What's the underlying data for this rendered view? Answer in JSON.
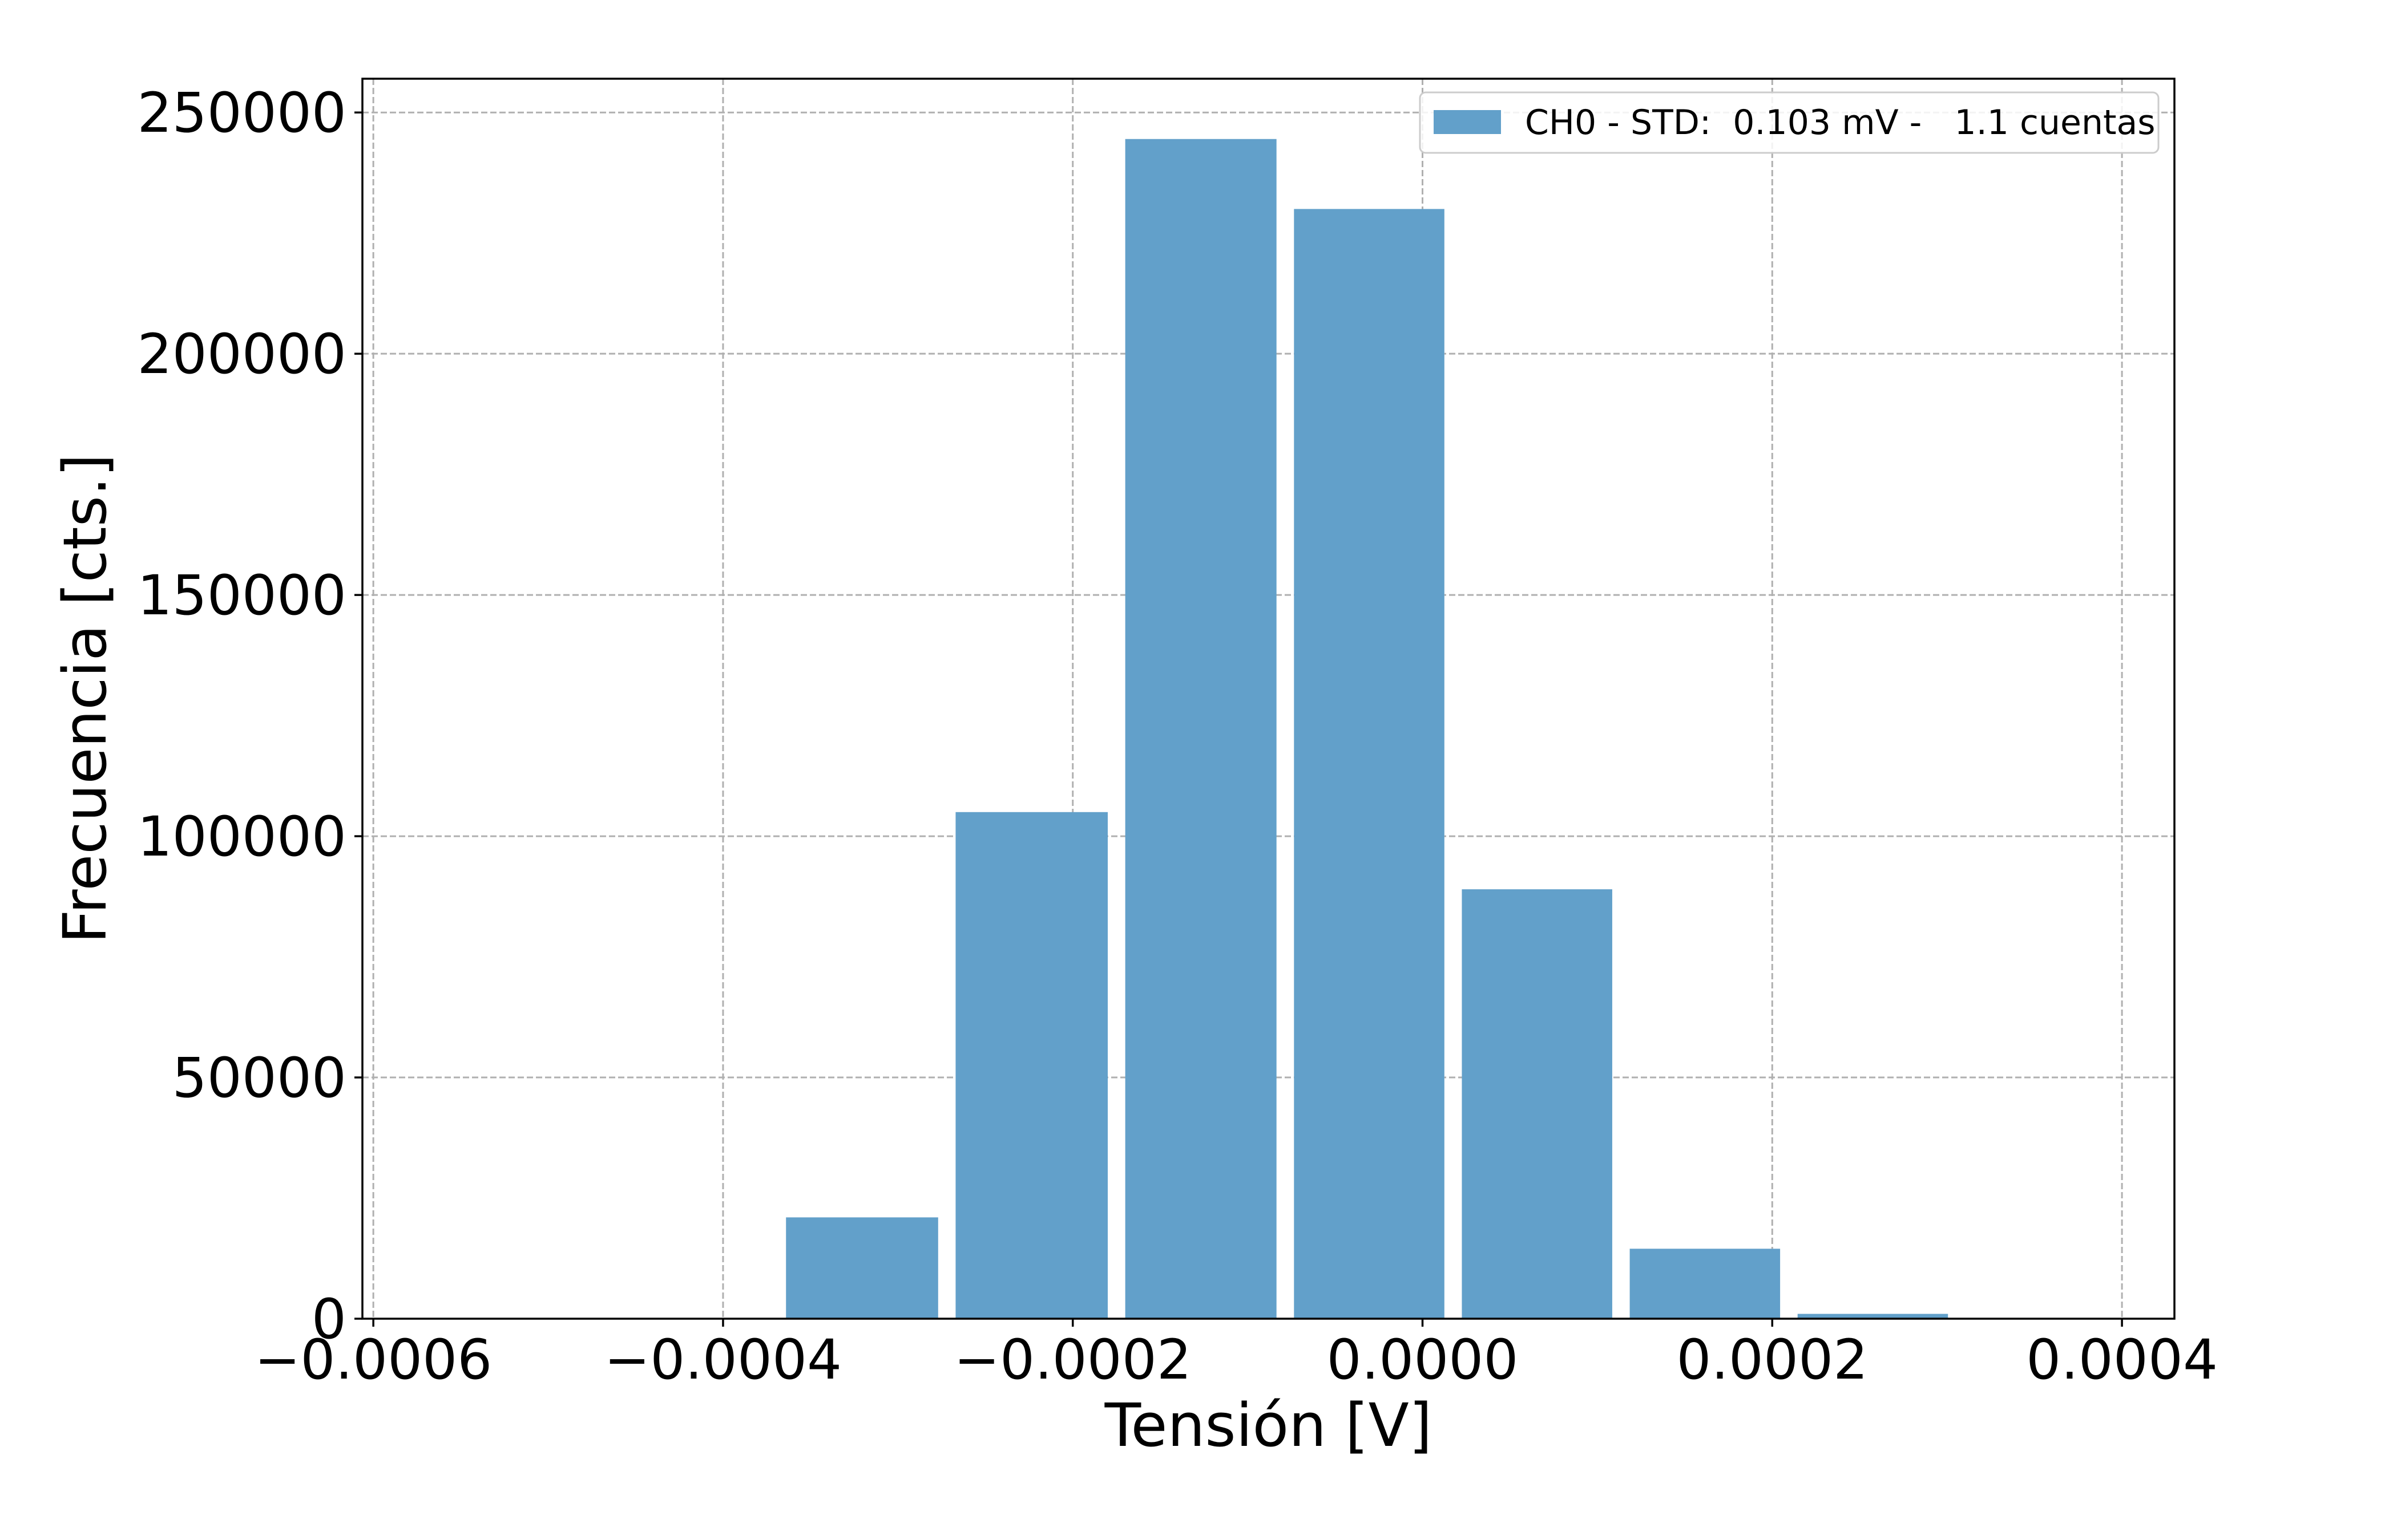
{
  "chart_data": {
    "type": "bar",
    "xlabel": "Tensión [V]",
    "ylabel": "Frecuencia [cts.]",
    "xlim": [
      -0.00060625,
      0.00043
    ],
    "ylim": [
      0,
      257000
    ],
    "x_ticks": [
      {
        "value": -0.0006,
        "label": "−0.0006"
      },
      {
        "value": -0.0004,
        "label": "−0.0004"
      },
      {
        "value": -0.0002,
        "label": "−0.0002"
      },
      {
        "value": 0.0,
        "label": "0.0000"
      },
      {
        "value": 0.0002,
        "label": "0.0002"
      },
      {
        "value": 0.0004,
        "label": "0.0004"
      }
    ],
    "y_ticks": [
      {
        "value": 0,
        "label": "0"
      },
      {
        "value": 50000,
        "label": "50000"
      },
      {
        "value": 100000,
        "label": "100000"
      },
      {
        "value": 150000,
        "label": "150000"
      },
      {
        "value": 200000,
        "label": "200000"
      },
      {
        "value": 250000,
        "label": "250000"
      }
    ],
    "grid": true,
    "legend_position": "top-right",
    "series": [
      {
        "name": "CH0 - STD:  0.103 mV -   1.1 cuentas",
        "color": "#62a0ca",
        "bins": [
          {
            "left": -0.000364,
            "right": -0.000277,
            "value": 21000
          },
          {
            "left": -0.000267,
            "right": -0.00018,
            "value": 105000
          },
          {
            "left": -0.00017,
            "right": -8.35e-05,
            "value": 244500
          },
          {
            "left": -7.35e-05,
            "right": 1.25e-05,
            "value": 230000
          },
          {
            "left": 2.25e-05,
            "right": 0.0001085,
            "value": 89000
          },
          {
            "left": 0.0001185,
            "right": 0.0002045,
            "value": 14500
          },
          {
            "left": 0.0002145,
            "right": 0.0003005,
            "value": 1000
          }
        ]
      }
    ]
  }
}
